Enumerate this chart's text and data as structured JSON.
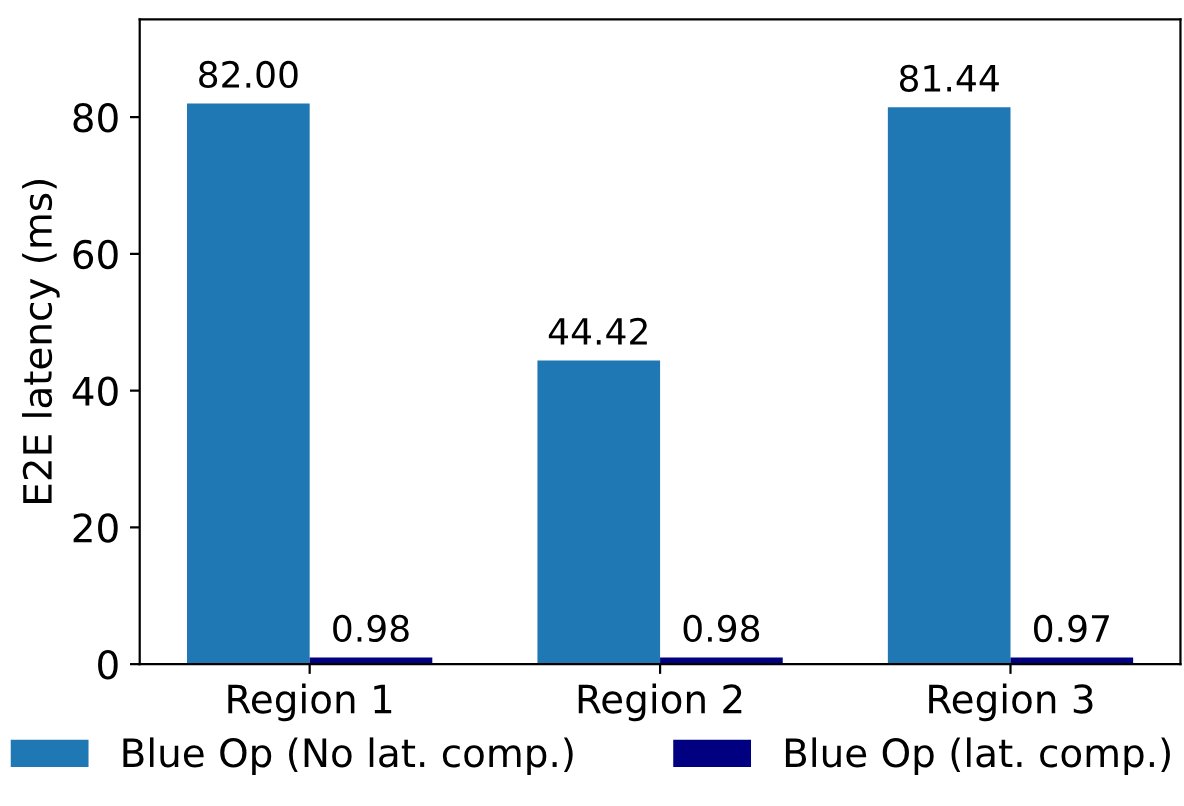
{
  "chart_data": {
    "type": "bar",
    "ylabel": "E2E latency (ms)",
    "categories": [
      "Region 1",
      "Region 2",
      "Region 3"
    ],
    "series": [
      {
        "name": "Blue Op (No lat. comp.)",
        "color": "#1f77b4",
        "values": [
          82.0,
          44.42,
          81.44
        ]
      },
      {
        "name": "Blue Op (lat. comp.)",
        "color": "#000080",
        "values": [
          0.98,
          0.98,
          0.97
        ]
      }
    ],
    "value_labels": [
      [
        "82.00",
        "44.42",
        "81.44"
      ],
      [
        "0.98",
        "0.98",
        "0.97"
      ]
    ],
    "ylim": [
      0,
      94.3
    ],
    "yticks": [
      0,
      20,
      40,
      60,
      80
    ],
    "grid": false,
    "legend": "bottom"
  }
}
